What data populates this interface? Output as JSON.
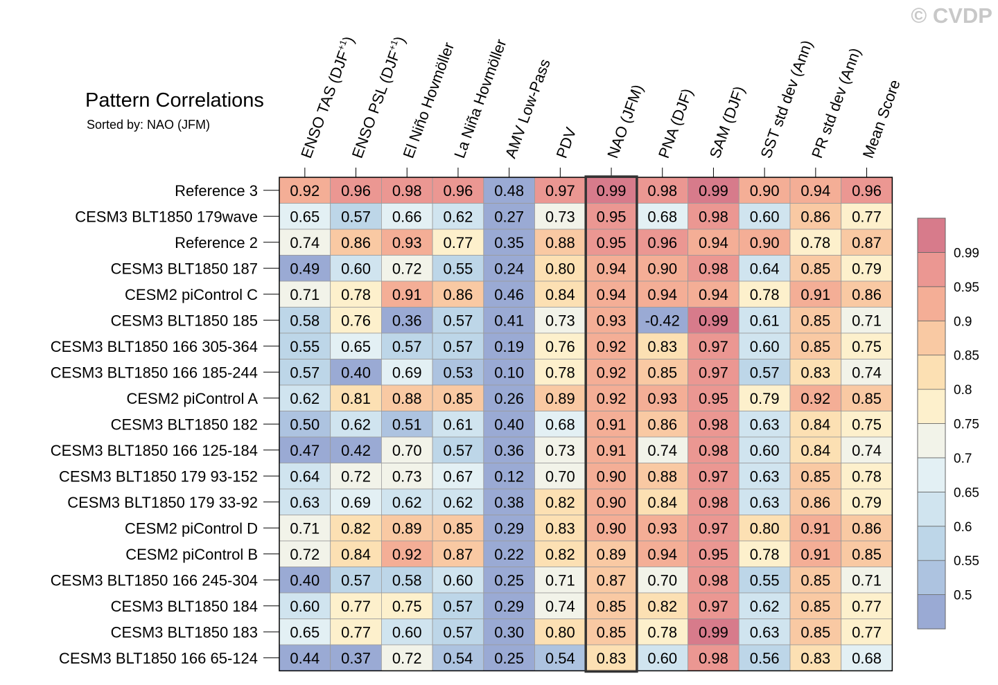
{
  "watermark": "© CVDP",
  "chart_data": {
    "type": "heatmap",
    "title": "Pattern Correlations",
    "subtitle": "Sorted by: NAO (JFM)",
    "highlight_column": "NAO (JFM)",
    "columns": [
      "ENSO TAS (DJF+1)",
      "ENSO PSL (DJF+1)",
      "El Niño Hovmöller",
      "La Niña Hovmöller",
      "AMV Low-Pass",
      "PDV",
      "NAO (JFM)",
      "PNA (DJF)",
      "SAM (DJF)",
      "SST std dev (Ann)",
      "PR std dev (Ann)",
      "Mean Score"
    ],
    "rows": [
      "Reference 3",
      "CESM3 BLT1850 179wave",
      "Reference 2",
      "CESM3 BLT1850 187",
      "CESM2 piControl C",
      "CESM3 BLT1850 185",
      "CESM3 BLT1850 166 305-364",
      "CESM3 BLT1850 166 185-244",
      "CESM2 piControl A",
      "CESM3 BLT1850 182",
      "CESM3 BLT1850 166 125-184",
      "CESM3 BLT1850 179 93-152",
      "CESM3 BLT1850 179 33-92",
      "CESM2 piControl D",
      "CESM2 piControl B",
      "CESM3 BLT1850 166 245-304",
      "CESM3 BLT1850 184",
      "CESM3 BLT1850 183",
      "CESM3 BLT1850 166 65-124"
    ],
    "values": [
      [
        0.92,
        0.96,
        0.98,
        0.96,
        0.48,
        0.97,
        0.99,
        0.98,
        0.99,
        0.9,
        0.94,
        0.96
      ],
      [
        0.65,
        0.57,
        0.66,
        0.62,
        0.27,
        0.73,
        0.95,
        0.68,
        0.98,
        0.6,
        0.86,
        0.77
      ],
      [
        0.74,
        0.86,
        0.93,
        0.77,
        0.35,
        0.88,
        0.95,
        0.96,
        0.94,
        0.9,
        0.78,
        0.87
      ],
      [
        0.49,
        0.6,
        0.72,
        0.55,
        0.24,
        0.8,
        0.94,
        0.9,
        0.98,
        0.64,
        0.85,
        0.79
      ],
      [
        0.71,
        0.78,
        0.91,
        0.86,
        0.46,
        0.84,
        0.94,
        0.94,
        0.94,
        0.78,
        0.91,
        0.86
      ],
      [
        0.58,
        0.76,
        0.36,
        0.57,
        0.41,
        0.73,
        0.93,
        -0.42,
        0.99,
        0.61,
        0.85,
        0.71
      ],
      [
        0.55,
        0.65,
        0.57,
        0.57,
        0.19,
        0.76,
        0.92,
        0.83,
        0.97,
        0.6,
        0.85,
        0.75
      ],
      [
        0.57,
        0.4,
        0.69,
        0.53,
        0.1,
        0.78,
        0.92,
        0.85,
        0.97,
        0.57,
        0.83,
        0.74
      ],
      [
        0.62,
        0.81,
        0.88,
        0.85,
        0.26,
        0.89,
        0.92,
        0.93,
        0.95,
        0.79,
        0.92,
        0.85
      ],
      [
        0.5,
        0.62,
        0.51,
        0.61,
        0.4,
        0.68,
        0.91,
        0.86,
        0.98,
        0.63,
        0.84,
        0.75
      ],
      [
        0.47,
        0.42,
        0.7,
        0.57,
        0.36,
        0.73,
        0.91,
        0.74,
        0.98,
        0.6,
        0.84,
        0.74
      ],
      [
        0.64,
        0.72,
        0.73,
        0.67,
        0.12,
        0.7,
        0.9,
        0.88,
        0.97,
        0.63,
        0.85,
        0.78
      ],
      [
        0.63,
        0.69,
        0.62,
        0.62,
        0.38,
        0.82,
        0.9,
        0.84,
        0.98,
        0.63,
        0.86,
        0.79
      ],
      [
        0.71,
        0.82,
        0.89,
        0.85,
        0.29,
        0.83,
        0.9,
        0.93,
        0.97,
        0.8,
        0.91,
        0.86
      ],
      [
        0.72,
        0.84,
        0.92,
        0.87,
        0.22,
        0.82,
        0.89,
        0.94,
        0.95,
        0.78,
        0.91,
        0.85
      ],
      [
        0.4,
        0.57,
        0.58,
        0.6,
        0.25,
        0.71,
        0.87,
        0.7,
        0.98,
        0.55,
        0.85,
        0.71
      ],
      [
        0.6,
        0.77,
        0.75,
        0.57,
        0.29,
        0.74,
        0.85,
        0.82,
        0.97,
        0.62,
        0.85,
        0.77
      ],
      [
        0.65,
        0.77,
        0.6,
        0.57,
        0.3,
        0.8,
        0.85,
        0.78,
        0.99,
        0.63,
        0.85,
        0.77
      ],
      [
        0.44,
        0.37,
        0.72,
        0.54,
        0.25,
        0.54,
        0.83,
        0.6,
        0.98,
        0.56,
        0.83,
        0.68
      ]
    ],
    "colorbar": {
      "labels": [
        "0.5",
        "0.55",
        "0.6",
        "0.65",
        "0.7",
        "0.75",
        "0.8",
        "0.85",
        "0.9",
        "0.95",
        "0.99"
      ],
      "thresholds": [
        0.5,
        0.55,
        0.6,
        0.65,
        0.7,
        0.75,
        0.8,
        0.85,
        0.9,
        0.95,
        0.99
      ],
      "colors": [
        "#9aaad4",
        "#adc3e0",
        "#bdd6e8",
        "#d0e4ef",
        "#e3f0f4",
        "#f2f3e9",
        "#fdf0cc",
        "#fce0b3",
        "#f9c9a3",
        "#f4ae96",
        "#eb9792",
        "#d77b8b"
      ]
    }
  }
}
